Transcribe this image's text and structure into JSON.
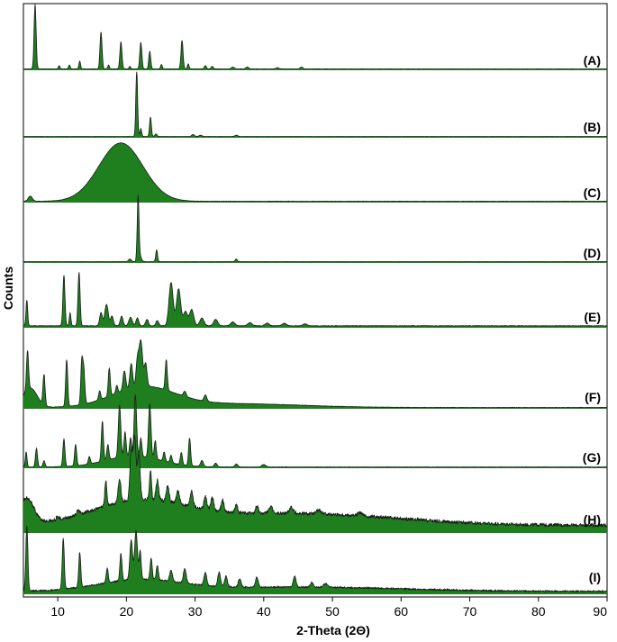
{
  "chart_data": {
    "type": "line",
    "title": "",
    "xlabel": "2-Theta (2Θ)",
    "ylabel": "Counts",
    "xlim": [
      5,
      90
    ],
    "xticks": [
      10,
      20,
      30,
      40,
      50,
      60,
      70,
      80,
      90
    ],
    "grid": false,
    "line_color": "#1f7f1f",
    "edge_color": "#1a1a1a",
    "series": [
      {
        "name": "(A)",
        "baseline": 0.02,
        "noise": 0.004,
        "peaks": [
          [
            6.7,
            1.0,
            0.15
          ],
          [
            10.2,
            0.05,
            0.12
          ],
          [
            11.7,
            0.06,
            0.12
          ],
          [
            13.2,
            0.12,
            0.12
          ],
          [
            16.3,
            0.57,
            0.15
          ],
          [
            17.4,
            0.06,
            0.12
          ],
          [
            19.2,
            0.42,
            0.15
          ],
          [
            20.5,
            0.04,
            0.12
          ],
          [
            22.1,
            0.41,
            0.15
          ],
          [
            23.4,
            0.27,
            0.14
          ],
          [
            25.1,
            0.07,
            0.12
          ],
          [
            28.1,
            0.44,
            0.15
          ],
          [
            29.0,
            0.08,
            0.12
          ],
          [
            31.5,
            0.05,
            0.15
          ],
          [
            32.5,
            0.04,
            0.15
          ],
          [
            35.5,
            0.03,
            0.2
          ],
          [
            37.6,
            0.03,
            0.2
          ],
          [
            42.0,
            0.02,
            0.2
          ],
          [
            45.5,
            0.03,
            0.2
          ]
        ]
      },
      {
        "name": "(B)",
        "baseline": 0.02,
        "noise": 0.003,
        "peaks": [
          [
            21.5,
            1.0,
            0.13
          ],
          [
            22.1,
            0.12,
            0.12
          ],
          [
            23.5,
            0.3,
            0.13
          ],
          [
            24.3,
            0.04,
            0.15
          ],
          [
            29.7,
            0.03,
            0.2
          ],
          [
            30.8,
            0.02,
            0.2
          ],
          [
            36.0,
            0.02,
            0.2
          ]
        ]
      },
      {
        "name": "(C)",
        "baseline": 0.02,
        "noise": 0.006,
        "peaks": [
          [
            19.2,
            0.9,
            3.2
          ],
          [
            6.0,
            0.08,
            0.3
          ]
        ]
      },
      {
        "name": "(D)",
        "baseline": 0.02,
        "noise": 0.003,
        "peaks": [
          [
            21.7,
            1.0,
            0.13
          ],
          [
            22.0,
            0.08,
            0.2
          ],
          [
            24.4,
            0.18,
            0.13
          ],
          [
            20.5,
            0.04,
            0.2
          ],
          [
            36.0,
            0.04,
            0.15
          ]
        ]
      },
      {
        "name": "(E)",
        "baseline": 0.03,
        "noise": 0.008,
        "peaks": [
          [
            5.5,
            0.4,
            0.12
          ],
          [
            10.9,
            0.78,
            0.15
          ],
          [
            11.8,
            0.2,
            0.12
          ],
          [
            13.1,
            0.83,
            0.15
          ],
          [
            16.3,
            0.2,
            0.2
          ],
          [
            17.1,
            0.33,
            0.25
          ],
          [
            17.9,
            0.15,
            0.2
          ],
          [
            19.3,
            0.15,
            0.2
          ],
          [
            20.6,
            0.13,
            0.25
          ],
          [
            21.6,
            0.12,
            0.2
          ],
          [
            23.0,
            0.1,
            0.2
          ],
          [
            24.5,
            0.08,
            0.2
          ],
          [
            26.5,
            0.67,
            0.3
          ],
          [
            27.6,
            0.57,
            0.3
          ],
          [
            28.6,
            0.22,
            0.3
          ],
          [
            29.5,
            0.25,
            0.3
          ],
          [
            31.0,
            0.12,
            0.3
          ],
          [
            33.0,
            0.1,
            0.3
          ],
          [
            35.5,
            0.06,
            0.3
          ],
          [
            38.0,
            0.05,
            0.3
          ],
          [
            40.5,
            0.04,
            0.3
          ],
          [
            43.0,
            0.04,
            0.3
          ],
          [
            46.0,
            0.03,
            0.3
          ]
        ]
      },
      {
        "name": "(F)",
        "baseline": 0.02,
        "noise": 0.006,
        "bumps": [
          [
            6.0,
            0.3,
            1.0
          ],
          [
            22.5,
            0.3,
            4.5
          ],
          [
            35.0,
            0.06,
            10.0
          ]
        ],
        "peaks": [
          [
            5.6,
            0.6,
            0.15
          ],
          [
            8.0,
            0.47,
            0.15
          ],
          [
            11.3,
            0.72,
            0.15
          ],
          [
            13.5,
            0.66,
            0.15
          ],
          [
            13.8,
            0.5,
            0.15
          ],
          [
            16.1,
            0.14,
            0.15
          ],
          [
            17.5,
            0.43,
            0.15
          ],
          [
            18.6,
            0.12,
            0.15
          ],
          [
            19.7,
            0.3,
            0.2
          ],
          [
            20.7,
            0.38,
            0.2
          ],
          [
            21.6,
            0.4,
            0.2
          ],
          [
            22.1,
            0.7,
            0.25
          ],
          [
            22.8,
            0.35,
            0.2
          ],
          [
            25.8,
            0.47,
            0.15
          ],
          [
            28.5,
            0.08,
            0.2
          ],
          [
            31.5,
            0.1,
            0.2
          ]
        ]
      },
      {
        "name": "(G)",
        "baseline": 0.02,
        "noise": 0.006,
        "bumps": [
          [
            21.0,
            0.18,
            4.0
          ]
        ],
        "peaks": [
          [
            5.4,
            0.25,
            0.12
          ],
          [
            6.9,
            0.3,
            0.15
          ],
          [
            8.0,
            0.1,
            0.15
          ],
          [
            10.9,
            0.45,
            0.15
          ],
          [
            12.6,
            0.35,
            0.15
          ],
          [
            14.6,
            0.12,
            0.15
          ],
          [
            16.5,
            0.65,
            0.15
          ],
          [
            17.3,
            0.25,
            0.15
          ],
          [
            19.0,
            0.85,
            0.18
          ],
          [
            19.8,
            0.4,
            0.15
          ],
          [
            20.6,
            0.3,
            0.15
          ],
          [
            21.3,
            1.0,
            0.18
          ],
          [
            22.1,
            0.3,
            0.15
          ],
          [
            23.4,
            0.88,
            0.18
          ],
          [
            24.2,
            0.3,
            0.15
          ],
          [
            25.5,
            0.15,
            0.15
          ],
          [
            26.5,
            0.12,
            0.15
          ],
          [
            28.0,
            0.2,
            0.15
          ],
          [
            29.2,
            0.45,
            0.15
          ],
          [
            31.0,
            0.1,
            0.2
          ],
          [
            33.0,
            0.06,
            0.2
          ],
          [
            36.0,
            0.05,
            0.2
          ],
          [
            40.0,
            0.04,
            0.3
          ]
        ]
      },
      {
        "name": "(H)",
        "baseline": 0.12,
        "noise": 0.05,
        "bumps": [
          [
            5.5,
            0.4,
            1.0
          ],
          [
            22.0,
            0.35,
            7.0
          ],
          [
            45.0,
            0.18,
            14.0
          ]
        ],
        "peaks": [
          [
            10.0,
            0.05,
            0.2
          ],
          [
            13.0,
            0.08,
            0.2
          ],
          [
            17.0,
            0.4,
            0.15
          ],
          [
            19.0,
            0.38,
            0.2
          ],
          [
            20.7,
            0.75,
            0.2
          ],
          [
            21.2,
            0.95,
            0.2
          ],
          [
            21.8,
            0.7,
            0.2
          ],
          [
            23.5,
            0.45,
            0.15
          ],
          [
            24.5,
            0.3,
            0.2
          ],
          [
            26.0,
            0.25,
            0.2
          ],
          [
            27.5,
            0.2,
            0.2
          ],
          [
            29.5,
            0.25,
            0.2
          ],
          [
            31.5,
            0.2,
            0.2
          ],
          [
            32.5,
            0.2,
            0.2
          ],
          [
            34.0,
            0.18,
            0.2
          ],
          [
            36.0,
            0.12,
            0.2
          ],
          [
            39.0,
            0.12,
            0.2
          ],
          [
            41.0,
            0.1,
            0.3
          ],
          [
            44.0,
            0.1,
            0.3
          ],
          [
            48.0,
            0.06,
            0.3
          ],
          [
            54.0,
            0.05,
            0.3
          ]
        ]
      },
      {
        "name": "(I)",
        "baseline": 0.04,
        "noise": 0.02,
        "bumps": [
          [
            22.0,
            0.15,
            6.0
          ],
          [
            45.0,
            0.06,
            15.0
          ]
        ],
        "peaks": [
          [
            5.5,
            0.9,
            0.15
          ],
          [
            10.8,
            0.7,
            0.15
          ],
          [
            13.2,
            0.48,
            0.15
          ],
          [
            17.2,
            0.2,
            0.15
          ],
          [
            19.2,
            0.38,
            0.15
          ],
          [
            20.7,
            0.55,
            0.2
          ],
          [
            21.4,
            0.68,
            0.2
          ],
          [
            22.0,
            0.4,
            0.15
          ],
          [
            23.6,
            0.3,
            0.15
          ],
          [
            24.5,
            0.2,
            0.15
          ],
          [
            26.5,
            0.15,
            0.2
          ],
          [
            28.5,
            0.2,
            0.2
          ],
          [
            31.5,
            0.18,
            0.2
          ],
          [
            33.5,
            0.2,
            0.2
          ],
          [
            34.5,
            0.15,
            0.2
          ],
          [
            36.5,
            0.12,
            0.2
          ],
          [
            39.0,
            0.14,
            0.2
          ],
          [
            44.5,
            0.15,
            0.2
          ],
          [
            47.0,
            0.07,
            0.2
          ],
          [
            49.0,
            0.05,
            0.3
          ]
        ]
      }
    ]
  }
}
